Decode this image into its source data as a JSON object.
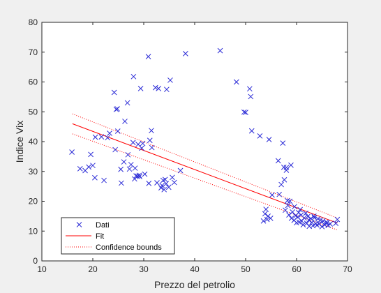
{
  "chart_data": {
    "type": "scatter",
    "xlabel": "Prezzo del petrolio",
    "ylabel": "Indice Vix",
    "xlim": [
      10,
      70
    ],
    "ylim": [
      0,
      80
    ],
    "xticks": [
      "10",
      "20",
      "30",
      "40",
      "50",
      "60",
      "70"
    ],
    "yticks": [
      "0",
      "10",
      "20",
      "30",
      "40",
      "50",
      "60",
      "70",
      "80"
    ],
    "grid": false,
    "legend_position": "bottom-left",
    "series": [
      {
        "name": "Dati",
        "marker": "x",
        "color": "#2a2ad6",
        "x": [
          15.9,
          17.5,
          18.5,
          19.2,
          19.6,
          20.0,
          20.4,
          20.5,
          21.7,
          22.2,
          22.9,
          23.3,
          24.2,
          24.4,
          24.6,
          24.8,
          24.9,
          25.5,
          25.6,
          26.1,
          26.3,
          26.8,
          26.9,
          27.2,
          27.5,
          27.9,
          28.0,
          28.2,
          28.3,
          28.5,
          28.8,
          28.9,
          29.1,
          29.2,
          29.4,
          29.6,
          29.8,
          30.2,
          30.9,
          31.0,
          31.2,
          31.5,
          31.6,
          32.3,
          32.6,
          32.9,
          33.4,
          33.6,
          33.8,
          34.0,
          34.2,
          34.4,
          34.5,
          34.9,
          35.2,
          35.6,
          36.0,
          37.2,
          38.2,
          45.0,
          48.2,
          49.7,
          50.0,
          50.8,
          51.0,
          51.2,
          52.8,
          53.5,
          53.8,
          54.0,
          54.2,
          54.4,
          54.6,
          54.9,
          55.2,
          56.4,
          56.6,
          57.0,
          57.3,
          57.5,
          57.6,
          57.8,
          58.0,
          58.0,
          58.2,
          58.3,
          58.5,
          58.7,
          58.9,
          59.0,
          59.2,
          59.5,
          59.6,
          59.8,
          60.0,
          60.2,
          60.4,
          60.5,
          60.7,
          60.9,
          61.0,
          61.3,
          61.5,
          61.8,
          62.0,
          62.2,
          62.4,
          62.5,
          62.8,
          63.0,
          63.2,
          63.4,
          63.5,
          63.8,
          64.0,
          64.2,
          64.4,
          64.7,
          65.0,
          65.2,
          65.5,
          65.8,
          66.0,
          66.2,
          66.6,
          67.7,
          68.0
        ],
        "y": [
          36.5,
          30.9,
          30.3,
          31.5,
          35.7,
          32.0,
          27.9,
          41.5,
          41.6,
          27.0,
          41.3,
          42.8,
          56.5,
          37.3,
          50.8,
          51.0,
          43.5,
          30.7,
          26.1,
          33.2,
          46.8,
          53.0,
          35.6,
          30.8,
          32.3,
          39.7,
          61.8,
          27.5,
          31.1,
          28.5,
          28.4,
          39.1,
          28.7,
          28.3,
          57.8,
          37.8,
          39.4,
          29.1,
          68.5,
          26.0,
          40.4,
          43.7,
          38.0,
          58.1,
          26.2,
          57.8,
          24.5,
          25.3,
          27.0,
          23.9,
          27.3,
          25.9,
          57.5,
          24.7,
          60.6,
          28.0,
          26.3,
          30.3,
          69.5,
          70.5,
          60.0,
          49.9,
          49.8,
          57.7,
          55.1,
          43.6,
          41.9,
          13.4,
          15.8,
          17.3,
          13.9,
          15.0,
          40.7,
          14.3,
          22.1,
          33.6,
          22.3,
          25.6,
          39.5,
          31.4,
          27.2,
          17.0,
          30.4,
          31.3,
          20.2,
          18.6,
          15.4,
          20.0,
          32.1,
          14.3,
          16.4,
          13.6,
          18.2,
          15.1,
          12.8,
          14.7,
          16.2,
          13.0,
          17.2,
          15.4,
          13.4,
          12.1,
          14.4,
          16.0,
          12.6,
          14.9,
          13.7,
          11.6,
          14.2,
          12.9,
          11.8,
          15.0,
          14.5,
          12.5,
          12.0,
          14.1,
          12.4,
          13.7,
          11.5,
          13.4,
          12.1,
          13.0,
          12.8,
          11.9,
          12.4,
          12.6,
          13.9
        ]
      },
      {
        "name": "Fit",
        "style": "solid",
        "color": "#ff0000",
        "x": [
          16,
          68
        ],
        "y": [
          46.0,
          12.7
        ]
      },
      {
        "name": "Confidence bounds",
        "style": "dotted",
        "color": "#ff0000",
        "upper": {
          "x": [
            16,
            68
          ],
          "y": [
            49.3,
            14.4
          ]
        },
        "lower": {
          "x": [
            16,
            68
          ],
          "y": [
            42.6,
            10.4
          ]
        }
      }
    ]
  }
}
